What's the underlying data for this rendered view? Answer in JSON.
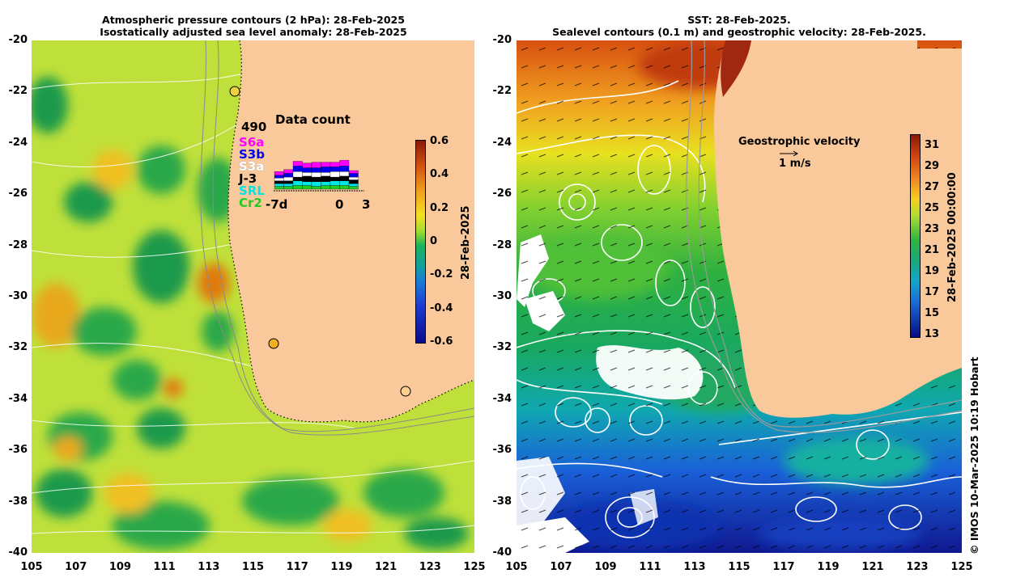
{
  "left_panel": {
    "title_line1": "Atmospheric pressure contours (2 hPa): 28-Feb-2025",
    "title_line2": "Isostatically adjusted sea level anomaly: 28-Feb-2025",
    "colorbar_label": "28-Feb-2025",
    "colorbar_ticks": [
      "0.6",
      "0.4",
      "0.2",
      "0",
      "-0.2",
      "-0.4",
      "-0.6"
    ],
    "colorbar_values": [
      0.6,
      0.4,
      0.2,
      0,
      -0.2,
      -0.4,
      -0.6
    ],
    "colors": {
      "neg": "#0a0a8a",
      "zero": "#18b45a",
      "pos": "#9a1e0a",
      "land": "#f9c89b"
    },
    "inset": {
      "title": "Data count",
      "count": "490",
      "missions": [
        "S6a",
        "S3b",
        "S3a",
        "J-3",
        "SRL",
        "Cr2"
      ],
      "mission_colors": [
        "#ff00ff",
        "#0000ee",
        "#ffffff",
        "#000000",
        "#00e5e5",
        "#22cc22"
      ],
      "x_labels": [
        "-7d",
        "0",
        "3"
      ]
    }
  },
  "right_panel": {
    "title_line1": "SST: 28-Feb-2025.",
    "title_line2": "Sealevel contours (0.1 m) and geostrophic velocity: 28-Feb-2025.",
    "legend_title": "Geostrophic velocity",
    "legend_scale": "1 m/s",
    "colorbar_label": "28-Feb-2025 00:00:00",
    "colorbar_ticks": [
      "31",
      "29",
      "27",
      "25",
      "23",
      "21",
      "19",
      "17",
      "15",
      "13"
    ],
    "colorbar_values": [
      31,
      29,
      27,
      25,
      23,
      21,
      19,
      17,
      15,
      13
    ],
    "colors": {
      "cold": "#0a0a8a",
      "warm": "#9a1e0a",
      "land": "#f9c89b"
    }
  },
  "axes": {
    "lat_ticks": [
      "-20",
      "-22",
      "-24",
      "-26",
      "-28",
      "-30",
      "-32",
      "-34",
      "-36",
      "-38",
      "-40"
    ],
    "lon_ticks": [
      "105",
      "107",
      "109",
      "111",
      "113",
      "115",
      "117",
      "119",
      "121",
      "123",
      "125"
    ],
    "lat_range": [
      -40,
      -20
    ],
    "lon_range": [
      105,
      125
    ]
  },
  "credit": "© IMOS 10-Mar-2025 10:19 Hobart"
}
